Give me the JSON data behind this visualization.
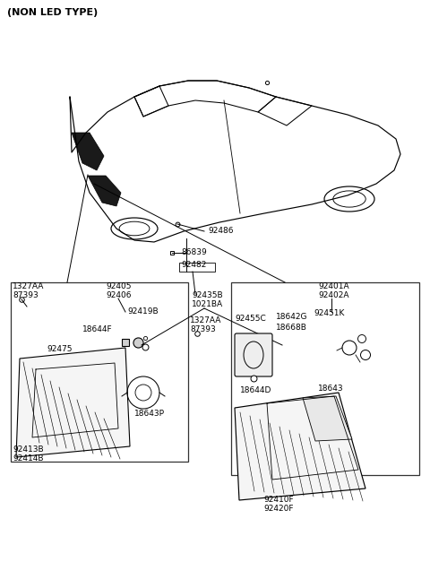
{
  "bg_color": "#ffffff",
  "label_top": "(NON LED TYPE)",
  "parts": {
    "92486": "92486",
    "86839": "86839",
    "92482": "92482",
    "92405": "92405",
    "92406": "92406",
    "92419B": "92419B",
    "18644F": "18644F",
    "92475": "92475",
    "18643P_l": "18643P",
    "92413B": "92413B",
    "92414B": "92414B",
    "1327AA_l": "1327AA",
    "87393_l": "87393",
    "92435B": "92435B",
    "1021BA": "1021BA",
    "1327AA_m": "1327AA",
    "87393_m": "87393",
    "92401A": "92401A",
    "92402A": "92402A",
    "92455C": "92455C",
    "18642G": "18642G",
    "92451K": "92451K",
    "18668B": "18668B",
    "18644D": "18644D",
    "18643P_r": "18643",
    "92410F": "92410F",
    "92420F": "92420F"
  }
}
